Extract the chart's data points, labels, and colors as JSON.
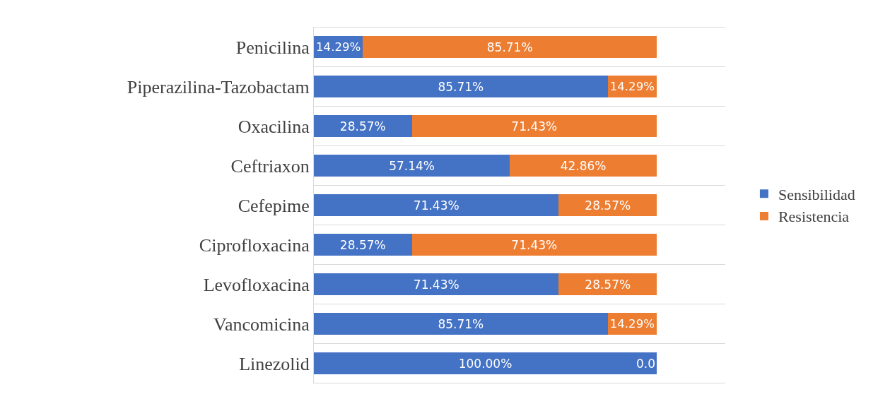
{
  "chart_data": {
    "type": "bar",
    "orientation": "horizontal",
    "stacked": true,
    "categories": [
      "Penicilina",
      "Piperazilina-Tazobactam",
      "Oxacilina",
      "Ceftriaxon",
      "Cefepime",
      "Ciprofloxacina",
      "Levofloxacina",
      "Vancomicina",
      "Linezolid"
    ],
    "series": [
      {
        "name": "Sensibilidad",
        "color": "#4472c4",
        "values": [
          14.29,
          85.71,
          28.57,
          57.14,
          71.43,
          28.57,
          71.43,
          85.71,
          100.0
        ],
        "value_labels": [
          "14.29%",
          "85.71%",
          "28.57%",
          "57.14%",
          "71.43%",
          "28.57%",
          "71.43%",
          "85.71%",
          "100.00%"
        ]
      },
      {
        "name": "Resistencia",
        "color": "#ed7d31",
        "values": [
          85.71,
          14.29,
          71.43,
          42.86,
          28.57,
          71.43,
          28.57,
          14.29,
          0.0
        ],
        "value_labels": [
          "85.71%",
          "14.29%",
          "71.43%",
          "42.86%",
          "28.57%",
          "71.43%",
          "28.57%",
          "14.29%",
          "0.0"
        ]
      }
    ],
    "xlim": [
      0,
      120
    ],
    "grid": "y",
    "legend": "right"
  }
}
